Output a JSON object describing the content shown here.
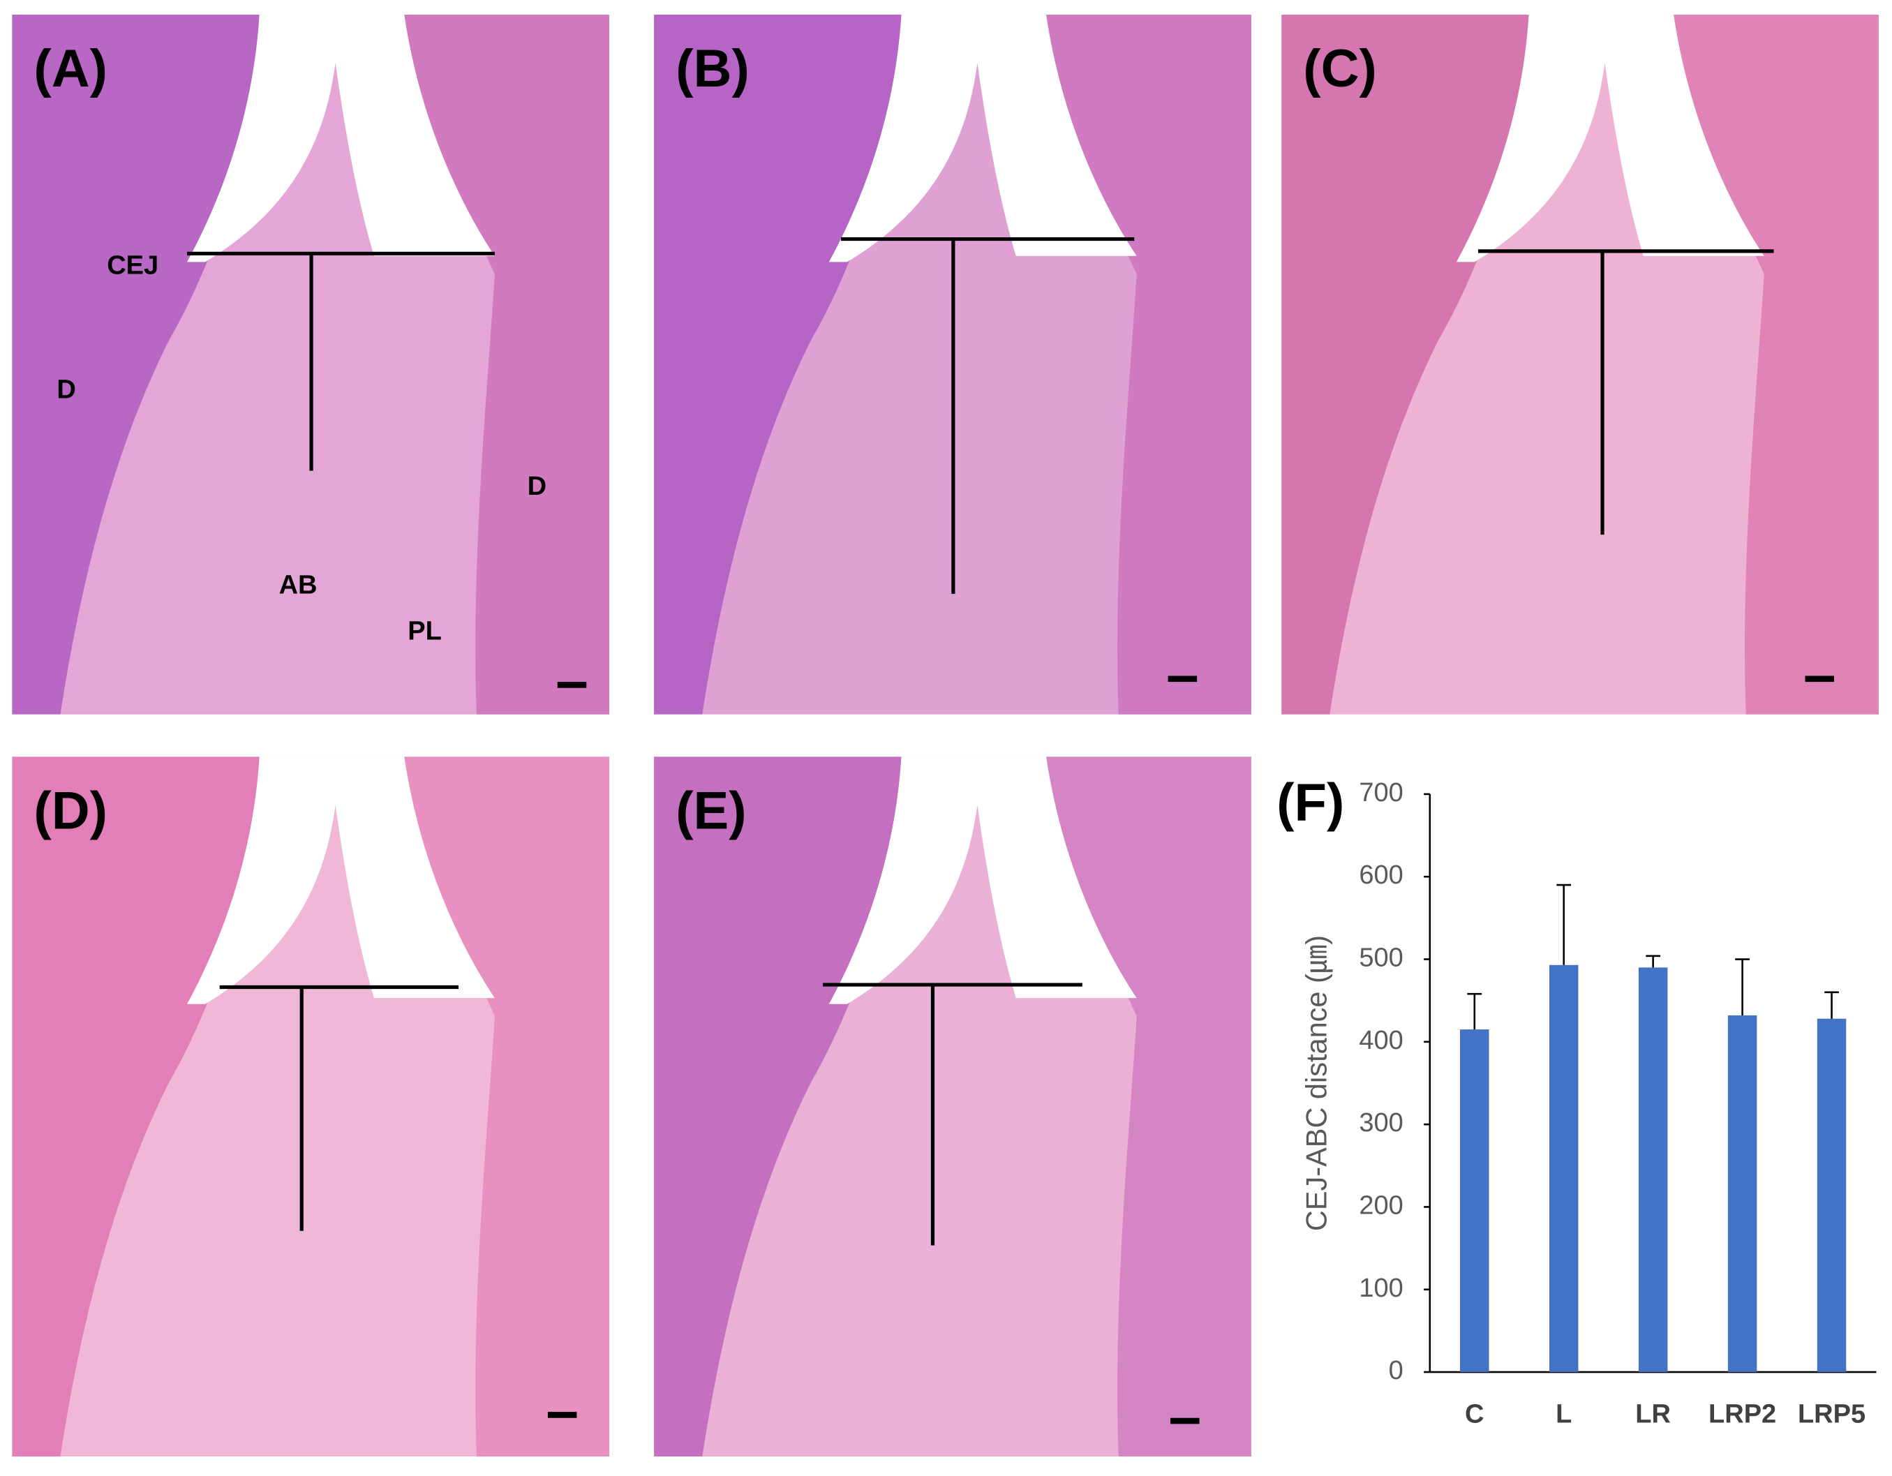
{
  "panels": [
    {
      "label": "(A)",
      "annotations": [
        "CEJ",
        "D",
        "D",
        "AB",
        "PL"
      ]
    },
    {
      "label": "(B)"
    },
    {
      "label": "(C)"
    },
    {
      "label": "(D)"
    },
    {
      "label": "(E)"
    }
  ],
  "chart_data": {
    "type": "bar",
    "panel_label": "(F)",
    "y_label": "CEJ-ABC distance (㎛)",
    "categories": [
      "C",
      "L",
      "LR",
      "LRP2",
      "LRP5"
    ],
    "values": [
      415,
      493,
      490,
      432,
      428
    ],
    "errors": [
      43,
      97,
      14,
      68,
      32
    ],
    "color": "#4472c4",
    "ylim": [
      0,
      700
    ],
    "yticks": [
      0,
      100,
      200,
      300,
      400,
      500,
      600,
      700
    ]
  }
}
